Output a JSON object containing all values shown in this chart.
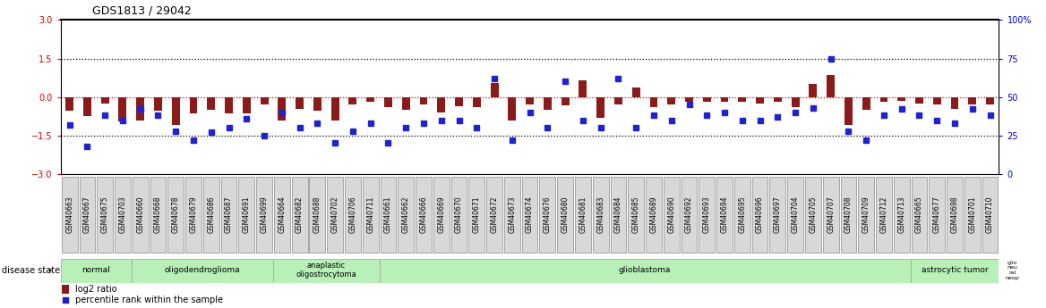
{
  "title": "GDS1813 / 29042",
  "samples": [
    "GSM40663",
    "GSM40667",
    "GSM40675",
    "GSM40703",
    "GSM40660",
    "GSM40668",
    "GSM40678",
    "GSM40679",
    "GSM40686",
    "GSM40687",
    "GSM40691",
    "GSM40699",
    "GSM40664",
    "GSM40682",
    "GSM40688",
    "GSM40702",
    "GSM40706",
    "GSM40711",
    "GSM40661",
    "GSM40662",
    "GSM40666",
    "GSM40669",
    "GSM40670",
    "GSM40671",
    "GSM40672",
    "GSM40673",
    "GSM40674",
    "GSM40676",
    "GSM40680",
    "GSM40681",
    "GSM40683",
    "GSM40684",
    "GSM40685",
    "GSM40689",
    "GSM40690",
    "GSM40692",
    "GSM40693",
    "GSM40694",
    "GSM40695",
    "GSM40696",
    "GSM40697",
    "GSM40704",
    "GSM40705",
    "GSM40707",
    "GSM40708",
    "GSM40709",
    "GSM40712",
    "GSM40713",
    "GSM40665",
    "GSM40677",
    "GSM40698",
    "GSM40701",
    "GSM40710"
  ],
  "log2_ratio": [
    -0.55,
    -0.75,
    -0.25,
    -0.95,
    -0.9,
    -0.55,
    -1.1,
    -0.65,
    -0.5,
    -0.65,
    -0.65,
    -0.28,
    -0.9,
    -0.45,
    -0.55,
    -0.9,
    -0.28,
    -0.18,
    -0.38,
    -0.5,
    -0.28,
    -0.6,
    -0.35,
    -0.4,
    0.55,
    -0.9,
    -0.28,
    -0.5,
    -0.32,
    0.65,
    -0.8,
    -0.28,
    0.38,
    -0.38,
    -0.28,
    -0.18,
    -0.18,
    -0.18,
    -0.2,
    -0.25,
    -0.2,
    -0.4,
    0.5,
    0.85,
    -1.1,
    -0.5,
    -0.18,
    -0.15,
    -0.25,
    -0.28,
    -0.45,
    -0.28,
    -0.28
  ],
  "percentile": [
    32,
    18,
    38,
    35,
    42,
    38,
    28,
    22,
    27,
    30,
    36,
    25,
    40,
    30,
    33,
    20,
    28,
    33,
    20,
    30,
    33,
    35,
    35,
    30,
    62,
    22,
    40,
    30,
    60,
    35,
    30,
    62,
    30,
    38,
    35,
    45,
    38,
    40,
    35,
    35,
    37,
    40,
    43,
    75,
    28,
    22,
    38,
    42,
    38,
    35,
    33,
    42,
    38
  ],
  "disease_groups": [
    {
      "label": "normal",
      "start": 0,
      "end": 4
    },
    {
      "label": "oligodendroglioma",
      "start": 4,
      "end": 12
    },
    {
      "label": "anaplastic\noligostrocytoma",
      "start": 12,
      "end": 18
    },
    {
      "label": "glioblastoma",
      "start": 18,
      "end": 48
    },
    {
      "label": "astrocytic tumor",
      "start": 48,
      "end": 53
    }
  ],
  "last_group_label": "glio\nneu\nral\nneop",
  "ylim_left": [
    -3,
    3
  ],
  "ylim_right": [
    0,
    100
  ],
  "yticks_left": [
    -3,
    -1.5,
    0,
    1.5,
    3
  ],
  "yticks_right": [
    0,
    25,
    50,
    75,
    100
  ],
  "bar_color": "#8b1a1a",
  "dot_color": "#2222cc",
  "group_color": "#b8f0b8",
  "group_edge_color": "#aaaaaa",
  "tick_box_color": "#d8d8d8",
  "tick_box_edge": "#888888"
}
